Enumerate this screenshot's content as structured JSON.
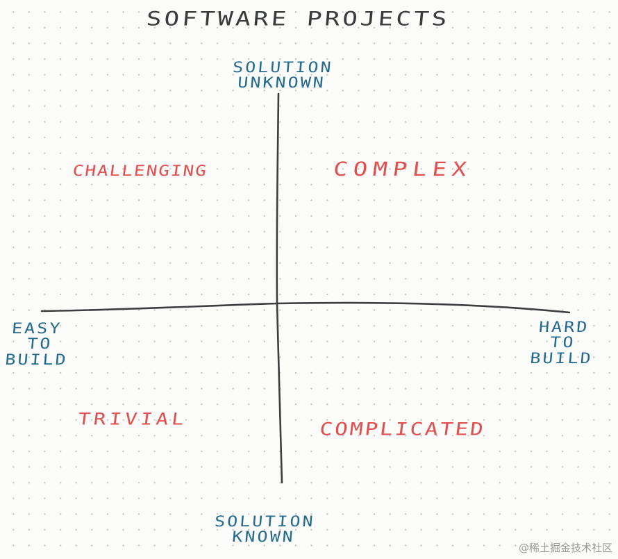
{
  "title": "SOFTWARE PROJECTS",
  "axes": {
    "top": [
      "SOLUTION",
      "UNKNOWN"
    ],
    "bottom": [
      "SOLUTION",
      "KNOWN"
    ],
    "left": [
      "EASY",
      "TO",
      "BUILD"
    ],
    "right": [
      "HARD",
      "TO",
      "BUILD"
    ]
  },
  "quadrants": {
    "top_left": "CHALLENGING",
    "top_right": "COMPLEX",
    "bottom_left": "TRIVIAL",
    "bottom_right": "COMPLICATED"
  },
  "watermark": "@稀土掘金技术社区",
  "colors": {
    "axis": "#3d3e40",
    "quadrant_text": "#e0504f",
    "axis_text": "#246b8e",
    "title_text": "#3a3b3d",
    "background": "#fbfbf9"
  }
}
